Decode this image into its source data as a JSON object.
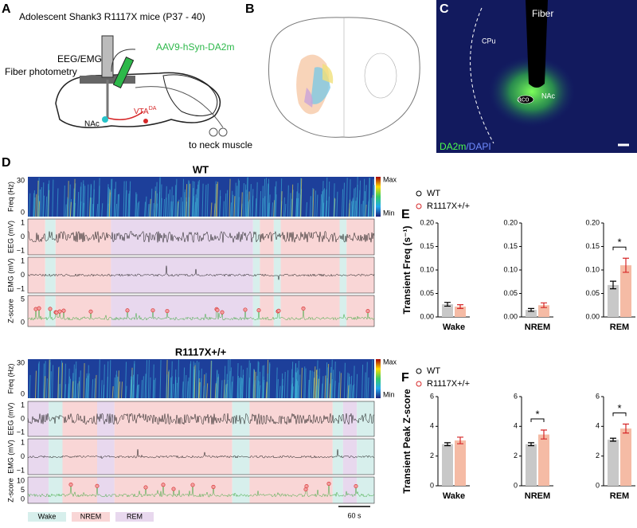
{
  "panel_a": {
    "label": "A",
    "title": "Adolescent Shank3 R1117X mice (P37 - 40)",
    "eeg": "EEG/EMG",
    "fiber": "Fiber photometry",
    "virus": "AAV9-hSyn-DA2m",
    "nac": "NAc",
    "vta": "VTA",
    "vta_sup": "DA",
    "muscle": "to neck muscle"
  },
  "panel_b": {
    "label": "B"
  },
  "panel_c": {
    "label": "C",
    "fiber": "Fiber",
    "cpu": "CPu",
    "aco": "aco",
    "nac": "NAc",
    "stain": "DA2m",
    "stain2": "/DAPI"
  },
  "panel_d": {
    "label": "D",
    "colorbar": {
      "max": "Max",
      "min": "Min"
    },
    "groups": [
      {
        "title": "WT",
        "rows": [
          {
            "ylabel": "Freq (Hz)",
            "ticks": [
              "30",
              "0"
            ]
          },
          {
            "ylabel": "EEG (mV)",
            "ticks": [
              "1",
              "0",
              "−1"
            ]
          },
          {
            "ylabel": "EMG (mV)",
            "ticks": [
              "1",
              "0",
              "−1"
            ]
          },
          {
            "ylabel": "Z-score",
            "ticks": [
              "5",
              "0"
            ]
          }
        ]
      },
      {
        "title": "R1117X+/+",
        "rows": [
          {
            "ylabel": "Freq (Hz)",
            "ticks": [
              "30",
              "0"
            ]
          },
          {
            "ylabel": "EEG (mV)",
            "ticks": [
              "1",
              "0",
              "−1"
            ]
          },
          {
            "ylabel": "EMG (mV)",
            "ticks": [
              "1",
              "0",
              "−1"
            ]
          },
          {
            "ylabel": "Z-score",
            "ticks": [
              "10",
              "5",
              "0"
            ]
          }
        ]
      }
    ],
    "legend": [
      "Wake",
      "NREM",
      "REM"
    ],
    "scalebar": "60 s"
  },
  "chart_data": [
    {
      "type": "bar",
      "panel": "E",
      "ylabel": "Transient Freq (s⁻¹)",
      "categories": [
        "Wake",
        "NREM",
        "REM"
      ],
      "series": [
        {
          "name": "WT",
          "color": "#c8c8c8",
          "error_color": "#000000",
          "values": [
            0.027,
            0.015,
            0.068
          ],
          "errors": [
            0.004,
            0.003,
            0.008
          ]
        },
        {
          "name": "R1117X+/+",
          "color": "#f5bba5",
          "error_color": "#d62728",
          "values": [
            0.022,
            0.025,
            0.11
          ],
          "errors": [
            0.004,
            0.005,
            0.015
          ]
        }
      ],
      "significance": [
        null,
        null,
        "*"
      ],
      "ylim": [
        0,
        0.2
      ],
      "yticks": [
        {
          "value": 0,
          "label": "0.00"
        },
        {
          "value": 0.05,
          "label": "0.05"
        },
        {
          "value": 0.1,
          "label": "0.10"
        },
        {
          "value": 0.15,
          "label": "0.15"
        },
        {
          "value": 0.2,
          "label": "0.20"
        }
      ]
    },
    {
      "type": "bar",
      "panel": "F",
      "ylabel": "Transient Peak Z-score",
      "categories": [
        "Wake",
        "NREM",
        "REM"
      ],
      "series": [
        {
          "name": "WT",
          "color": "#c8c8c8",
          "error_color": "#000000",
          "values": [
            2.8,
            2.8,
            3.1
          ],
          "errors": [
            0.1,
            0.1,
            0.1
          ]
        },
        {
          "name": "R1117X+/+",
          "color": "#f5bba5",
          "error_color": "#d62728",
          "values": [
            3.05,
            3.45,
            3.85
          ],
          "errors": [
            0.22,
            0.3,
            0.3
          ]
        }
      ],
      "significance": [
        null,
        "*",
        "*"
      ],
      "ylim": [
        0,
        6
      ],
      "yticks": [
        0,
        2,
        4,
        6
      ]
    }
  ]
}
